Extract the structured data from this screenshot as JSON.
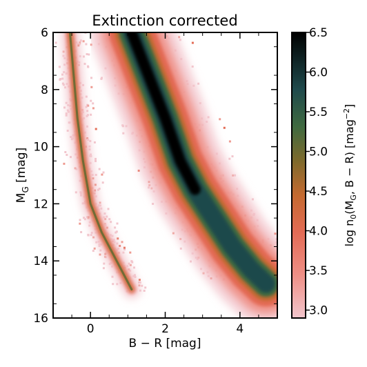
{
  "chart_data": {
    "type": "heatmap",
    "title": "Extinction corrected",
    "xlabel": "B − R [mag]",
    "ylabel": {
      "main": "M",
      "sub": "G",
      "rest": " [mag]"
    },
    "xlim": [
      -1.0,
      5.0
    ],
    "ylim": [
      16,
      6
    ],
    "y_inverted": true,
    "xticks": [
      0,
      2,
      4
    ],
    "yticks": [
      6,
      8,
      10,
      12,
      14,
      16
    ],
    "colorbar": {
      "label": "log n₀(M_G, B − R) [mag⁻²]",
      "range": [
        2.9,
        6.5
      ],
      "ticks": [
        "6.5",
        "6.0",
        "5.5",
        "5.0",
        "4.5",
        "4.0",
        "3.5",
        "3.0"
      ],
      "colors": [
        "#f2c6cd",
        "#ee8f86",
        "#e36b55",
        "#c46a30",
        "#7e6a2c",
        "#3f6a40",
        "#1f4a4c",
        "#000000"
      ]
    },
    "grid": false,
    "sequences": [
      {
        "name": "white dwarf sequence",
        "ridge": [
          {
            "color": -0.55,
            "mag": 6.0
          },
          {
            "color": -0.45,
            "mag": 7.5
          },
          {
            "color": -0.35,
            "mag": 9.0
          },
          {
            "color": -0.2,
            "mag": 10.5
          },
          {
            "color": 0.0,
            "mag": 12.0
          },
          {
            "color": 0.3,
            "mag": 13.0
          },
          {
            "color": 0.7,
            "mag": 14.0
          },
          {
            "color": 1.1,
            "mag": 15.0
          }
        ],
        "peak_log_density": 4.6
      },
      {
        "name": "main sequence",
        "ridge": [
          {
            "color": 1.1,
            "mag": 6.0
          },
          {
            "color": 1.55,
            "mag": 7.5
          },
          {
            "color": 2.0,
            "mag": 9.0
          },
          {
            "color": 2.4,
            "mag": 10.5
          },
          {
            "color": 2.8,
            "mag": 11.5
          },
          {
            "color": 3.3,
            "mag": 12.5
          },
          {
            "color": 3.8,
            "mag": 13.5
          },
          {
            "color": 4.3,
            "mag": 14.3
          },
          {
            "color": 4.7,
            "mag": 14.8
          }
        ],
        "peak_log_density": 6.5
      }
    ]
  }
}
